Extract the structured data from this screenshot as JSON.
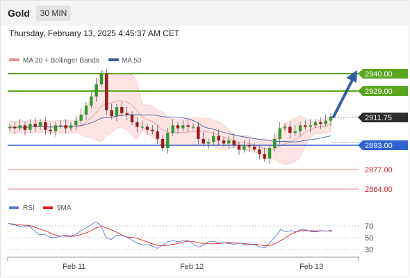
{
  "header": {
    "symbol": "Gold",
    "timeframe": "30 MIN"
  },
  "datetime": "Thursday, February 13, 2025 4:45:37 AM CET",
  "legend": {
    "ma20_bb": "MA 20 + Bollinger Bands",
    "ma50": "MA 50",
    "rsi": "RSI",
    "ma9": "9MA"
  },
  "colors": {
    "resistance": "#58a61e",
    "support": "#2f63d0",
    "weak_support": "#e88a8a",
    "candle_up": "#2e9b2e",
    "candle_down": "#9c1a1a",
    "bb_fill": "#fde0e0",
    "ma20": "#e99c9c",
    "ma50": "#3d63a8",
    "arrow": "#2f5ea6",
    "rsi": "#5b78d6",
    "rsi_ma": "#e01a1a"
  },
  "levels": {
    "r2": "2940.00",
    "r1": "2929.00",
    "current": "2911.75",
    "s1": "2893.00",
    "s2": "2877.00",
    "s3": "2864.00"
  },
  "rsi_levels": [
    "70",
    "50",
    "30"
  ],
  "x_labels": [
    "Feb 11",
    "Feb 12",
    "Feb 13"
  ],
  "chart_data": {
    "type": "candlestick",
    "title": "Gold 30 MIN",
    "price_axis_labels": [
      "2940.00",
      "2929.00",
      "2911.75",
      "2893.00",
      "2877.00",
      "2864.00"
    ],
    "x_tick_labels": [
      "Feb 11",
      "Feb 12",
      "Feb 13"
    ],
    "series": [
      {
        "name": "MA 20 + Bollinger Bands"
      },
      {
        "name": "MA 50"
      }
    ],
    "closes": [
      2905,
      2904,
      2906,
      2903,
      2907,
      2905,
      2908,
      2903,
      2902,
      2906,
      2906,
      2904,
      2906,
      2909,
      2913,
      2919,
      2925,
      2933,
      2940,
      2916,
      2912,
      2918,
      2914,
      2913,
      2908,
      2905,
      2905,
      2903,
      2902,
      2897,
      2891,
      2901,
      2906,
      2904,
      2906,
      2905,
      2905,
      2897,
      2894,
      2895,
      2899,
      2896,
      2894,
      2896,
      2893,
      2890,
      2893,
      2892,
      2890,
      2887,
      2884,
      2891,
      2897,
      2904,
      2905,
      2901,
      2902,
      2906,
      2905,
      2906,
      2908,
      2907,
      2909,
      2911.75
    ],
    "ylim": [
      2860,
      2945
    ],
    "indicator": {
      "name": "RSI",
      "levels": [
        70,
        50,
        30
      ],
      "values": [
        74,
        72,
        70,
        68,
        70,
        62,
        55,
        56,
        51,
        50,
        52,
        54,
        53,
        55,
        61,
        66,
        71,
        77,
        71,
        50,
        47,
        54,
        54,
        51,
        46,
        41,
        38,
        38,
        36,
        32,
        37,
        43,
        45,
        43,
        45,
        45,
        39,
        34,
        38,
        43,
        44,
        41,
        41,
        40,
        39,
        41,
        38,
        38,
        38,
        34,
        33,
        43,
        52,
        64,
        60,
        62,
        60,
        64,
        63,
        60,
        60,
        62,
        61,
        63
      ]
    }
  }
}
